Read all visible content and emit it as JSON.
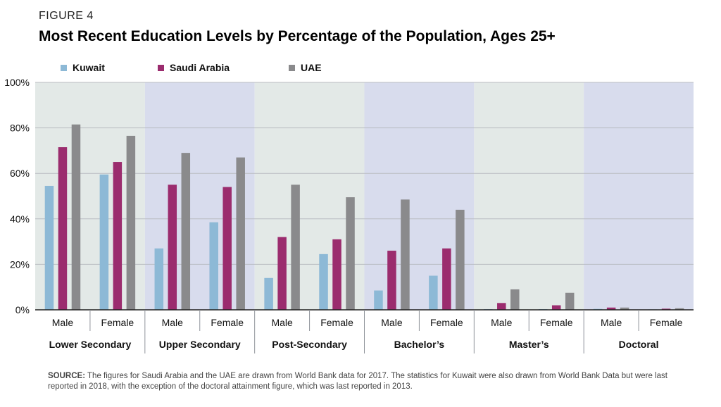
{
  "figure_label": "FIGURE 4",
  "colors": {
    "kuwait": "#8db9d6",
    "saudi": "#9b2c6e",
    "uae": "#8a8a8c",
    "band_a": "#e3e9e7",
    "band_b": "#d8dced"
  },
  "source": {
    "label": "SOURCE:",
    "text": " The figures for Saudi Arabia and the UAE are drawn from World Bank data for 2017. The statistics for Kuwait were also drawn from World Bank Data but were last reported in 2018, with the exception of the doctoral attainment figure, which was last reported in 2013."
  },
  "chart_data": {
    "type": "bar",
    "title": "Most Recent Education Levels by Percentage of the Population, Ages 25+",
    "ylim": [
      0,
      100
    ],
    "yticks": [
      "0%",
      "20%",
      "40%",
      "60%",
      "80%",
      "100%"
    ],
    "legend_position": "top-left",
    "grid": true,
    "groups": [
      "Lower Secondary",
      "Upper Secondary",
      "Post-Secondary",
      "Bachelor’s",
      "Master’s",
      "Doctoral"
    ],
    "categories": [
      "Male",
      "Female",
      "Male",
      "Female",
      "Male",
      "Female",
      "Male",
      "Female",
      "Male",
      "Female",
      "Male",
      "Female"
    ],
    "series": [
      {
        "name": "Kuwait",
        "values": [
          54.5,
          59.5,
          27,
          38.5,
          14,
          24.5,
          8.5,
          15,
          0.3,
          0.3,
          0.4,
          0.2
        ]
      },
      {
        "name": "Saudi Arabia",
        "values": [
          71.5,
          65,
          55,
          54,
          32,
          31,
          26,
          27,
          3,
          2,
          1,
          0.5
        ]
      },
      {
        "name": "UAE",
        "values": [
          81.5,
          76.5,
          69,
          67,
          55,
          49.5,
          48.5,
          44,
          9,
          7.5,
          1,
          0.7
        ]
      }
    ]
  }
}
